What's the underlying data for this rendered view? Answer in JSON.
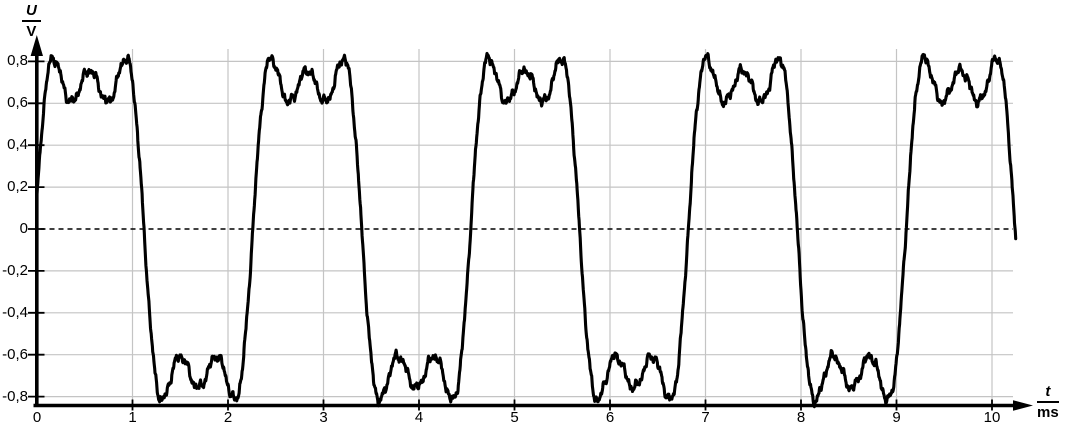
{
  "chart_data": {
    "type": "line",
    "title": "",
    "y_axis": {
      "quantity": "U",
      "unit": "V",
      "ticks": [
        {
          "u": 0.8,
          "label": "0,8"
        },
        {
          "u": 0.6,
          "label": "0,6"
        },
        {
          "u": 0.4,
          "label": "0,4"
        },
        {
          "u": 0.2,
          "label": "0,2"
        },
        {
          "u": 0.0,
          "label": "0"
        },
        {
          "u": -0.2,
          "label": "-0,2"
        },
        {
          "u": -0.4,
          "label": "-0,4"
        },
        {
          "u": -0.6,
          "label": "-0,6"
        },
        {
          "u": -0.8,
          "label": "-0,8"
        }
      ]
    },
    "x_axis": {
      "quantity": "t",
      "unit": "ms",
      "ticks": [
        {
          "t": 0,
          "label": "0"
        },
        {
          "t": 1,
          "label": "1"
        },
        {
          "t": 2,
          "label": "2"
        },
        {
          "t": 3,
          "label": "3"
        },
        {
          "t": 4,
          "label": "4"
        },
        {
          "t": 5,
          "label": "5"
        },
        {
          "t": 6,
          "label": "6"
        },
        {
          "t": 7,
          "label": "7"
        },
        {
          "t": 8,
          "label": "8"
        },
        {
          "t": 9,
          "label": "9"
        },
        {
          "t": 10,
          "label": "10"
        }
      ]
    },
    "xlim": [
      0,
      10.45
    ],
    "ylim": [
      -0.85,
      0.88
    ],
    "grid": true,
    "zero_line": "dashed",
    "legend": "none",
    "colors": {
      "trace": "#000000",
      "grid": "#c4c4c4",
      "axis": "#000000",
      "background": "#ffffff"
    },
    "waveform": {
      "description": "noisy square-like wave, Fourier partial sum of odd harmonics 1,3,5 plus small high-frequency noise; 5 positive half-cycles visible",
      "period_ms": 2.28,
      "amplitude_v": 0.875,
      "peak_v": 0.82,
      "phase_offset_ms": 0.02,
      "t_start_ms": 0,
      "t_end_ms": 10.25,
      "sample_step_ms": 0.004,
      "harmonics": [
        {
          "n": 1,
          "a": 1.0
        },
        {
          "n": 3,
          "a": 0.3333
        },
        {
          "n": 5,
          "a": 0.2
        }
      ],
      "noise": [
        {
          "f": 8.3,
          "a": 0.012,
          "p": 1.1
        },
        {
          "f": 14.7,
          "a": 0.01,
          "p": 0.3
        },
        {
          "f": 23.9,
          "a": 0.007,
          "p": 2.2
        },
        {
          "f": 41.0,
          "a": 0.006,
          "p": 0.9
        },
        {
          "f": 83.0,
          "a": 0.004,
          "p": 0.5
        }
      ]
    }
  }
}
